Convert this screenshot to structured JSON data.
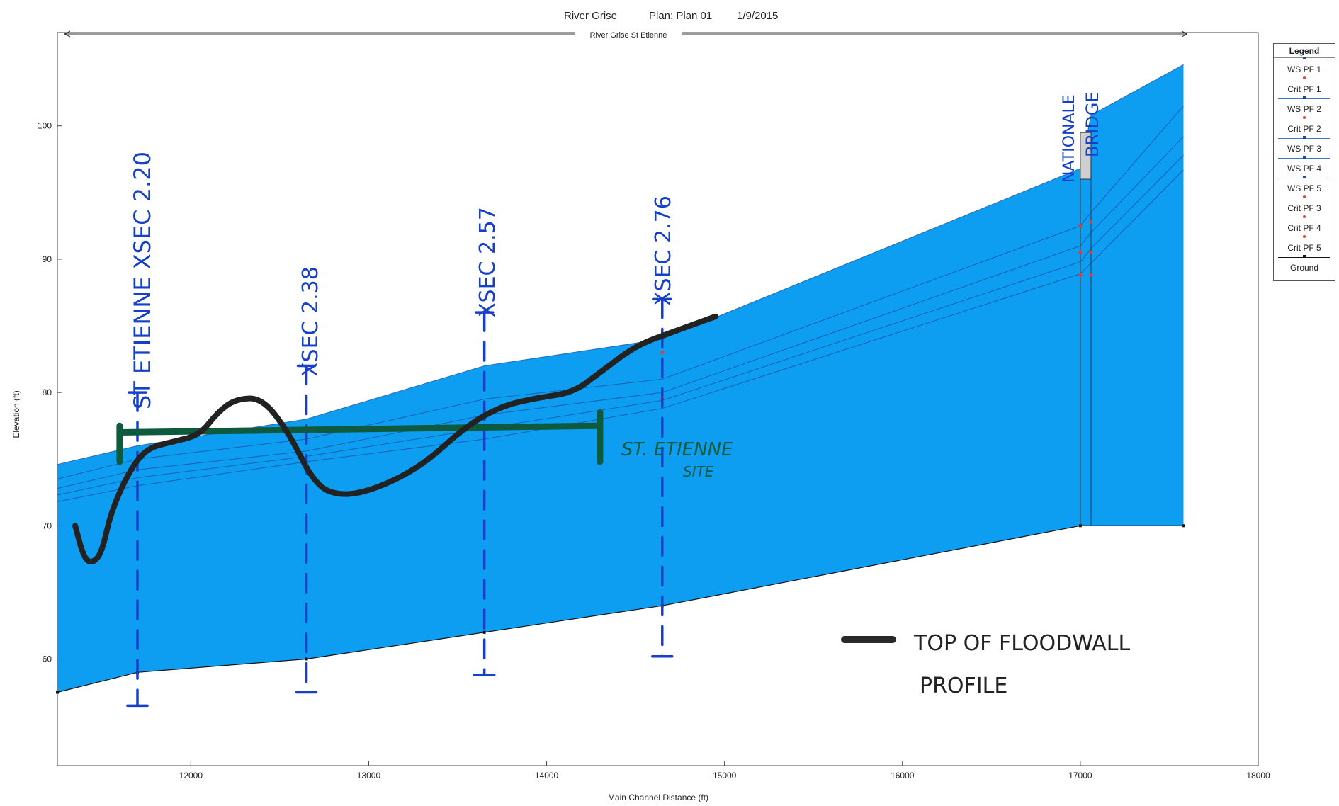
{
  "header": {
    "title_left": "River Grise",
    "title_mid": "Plan: Plan 01",
    "title_date": "1/9/2015",
    "reach_label": "River Grise St Etienne"
  },
  "colors": {
    "water": "#0d9ef2",
    "ground": "#111111",
    "ws_line": "#1a4b9a",
    "crit_marker": "#e23c3c",
    "annotation_blue": "#1740c8",
    "annotation_green": "#0d5a3c",
    "floodwall": "#222222"
  },
  "legend": {
    "title": "Legend",
    "items": [
      {
        "label": "WS PF 1",
        "kind": "ws"
      },
      {
        "label": "Crit PF 1",
        "kind": "crit"
      },
      {
        "label": "WS PF 2",
        "kind": "ws"
      },
      {
        "label": "Crit PF 2",
        "kind": "crit"
      },
      {
        "label": "WS PF 3",
        "kind": "ws"
      },
      {
        "label": "WS PF 4",
        "kind": "ws"
      },
      {
        "label": "WS PF 5",
        "kind": "ws"
      },
      {
        "label": "Crit PF 3",
        "kind": "crit"
      },
      {
        "label": "Crit PF 4",
        "kind": "crit"
      },
      {
        "label": "Crit PF 5",
        "kind": "crit"
      },
      {
        "label": "Ground",
        "kind": "ground"
      }
    ]
  },
  "annotations": {
    "xsec_220": "ST ETIENNE XSEC 2.20",
    "xsec_238": "XSEC 2.38",
    "xsec_257": "XSEC 2.57",
    "xsec_276": "XSEC 2.76",
    "bridge_line1": "NATIONALE",
    "bridge_line2": "BRIDGE",
    "site_line1": "ST. ETIENNE",
    "site_line2": "SITE",
    "key_line1": "TOP OF FLOODWALL",
    "key_line2": "PROFILE"
  },
  "chart_data": {
    "type": "area",
    "title": "River Grise     Plan: Plan 01     1/9/2015",
    "xlabel": "Main Channel Distance (ft)",
    "ylabel": "Elevation (ft)",
    "xlim": [
      11250,
      18000
    ],
    "ylim": [
      52,
      107
    ],
    "x_ticks": [
      12000,
      13000,
      14000,
      15000,
      16000,
      17000,
      18000
    ],
    "y_ticks": [
      60,
      70,
      80,
      90,
      100
    ],
    "legend_position": "right",
    "series": [
      {
        "name": "Ground",
        "points": [
          [
            11250,
            57.5
          ],
          [
            11700,
            59
          ],
          [
            12650,
            60
          ],
          [
            13650,
            62
          ],
          [
            14650,
            64
          ],
          [
            17000,
            70
          ],
          [
            17580,
            70
          ]
        ]
      },
      {
        "name": "WS PF 5",
        "points": [
          [
            11250,
            74.6
          ],
          [
            11700,
            76
          ],
          [
            12650,
            78
          ],
          [
            13650,
            82
          ],
          [
            14650,
            84
          ],
          [
            17000,
            96.8
          ],
          [
            17060,
            100.8
          ],
          [
            17580,
            104.6
          ]
        ]
      },
      {
        "name": "WS PF 4",
        "points": [
          [
            11250,
            73.5
          ],
          [
            11700,
            75
          ],
          [
            12650,
            76.5
          ],
          [
            13650,
            79.5
          ],
          [
            14650,
            81
          ],
          [
            17000,
            92.5
          ],
          [
            17060,
            93.5
          ],
          [
            17580,
            101.5
          ]
        ]
      },
      {
        "name": "WS PF 3",
        "points": [
          [
            11250,
            72.8
          ],
          [
            11700,
            74.2
          ],
          [
            12650,
            75.6
          ],
          [
            13650,
            78.3
          ],
          [
            14650,
            80
          ],
          [
            17000,
            91
          ],
          [
            17060,
            92
          ],
          [
            17580,
            99.2
          ]
        ]
      },
      {
        "name": "WS PF 2",
        "points": [
          [
            11250,
            72.3
          ],
          [
            11700,
            73.6
          ],
          [
            12650,
            75.2
          ],
          [
            13650,
            77.3
          ],
          [
            14650,
            79.4
          ],
          [
            17000,
            89.8
          ],
          [
            17060,
            90.8
          ],
          [
            17580,
            97.8
          ]
        ]
      },
      {
        "name": "WS PF 1",
        "points": [
          [
            11250,
            71.8
          ],
          [
            11700,
            73
          ],
          [
            12650,
            74.8
          ],
          [
            13650,
            76.5
          ],
          [
            14650,
            78.8
          ],
          [
            17000,
            88.9
          ],
          [
            17060,
            89.7
          ],
          [
            17580,
            96.7
          ]
        ]
      }
    ],
    "bridge": {
      "x_start": 17000,
      "x_end": 17060,
      "deck_top": 99.5,
      "deck_bottom": 96
    },
    "floodwall_profile": [
      [
        11350,
        70
      ],
      [
        11400,
        67.5
      ],
      [
        11450,
        67.2
      ],
      [
        11500,
        68
      ],
      [
        11550,
        71
      ],
      [
        11650,
        74
      ],
      [
        11750,
        75.8
      ],
      [
        11900,
        76.3
      ],
      [
        12050,
        76.8
      ],
      [
        12150,
        78.5
      ],
      [
        12250,
        79.5
      ],
      [
        12400,
        79.6
      ],
      [
        12550,
        77
      ],
      [
        12700,
        73
      ],
      [
        12850,
        72.2
      ],
      [
        13050,
        72.8
      ],
      [
        13300,
        74.5
      ],
      [
        13550,
        77.5
      ],
      [
        13750,
        79
      ],
      [
        13950,
        79.6
      ],
      [
        14150,
        80
      ],
      [
        14300,
        81.5
      ],
      [
        14500,
        83.5
      ],
      [
        14700,
        84.5
      ],
      [
        14950,
        85.7
      ]
    ],
    "site_extent": {
      "x_start": 11600,
      "x_end": 14300,
      "elevation": 77,
      "bar_top": 77.5,
      "bar_bottom": 74.8
    },
    "xsec_markers": [
      {
        "label": "ST ETIENNE XSEC 2.20",
        "x": 11700,
        "top": 80,
        "bottom": 56.5
      },
      {
        "label": "XSEC 2.38",
        "x": 12650,
        "top": 82,
        "bottom": 57.5
      },
      {
        "label": "XSEC 2.57",
        "x": 13650,
        "top": 86,
        "bottom": 58.8
      },
      {
        "label": "XSEC 2.76",
        "x": 14650,
        "top": 87,
        "bottom": 60.2
      }
    ],
    "crit_points": [
      [
        17000,
        92.5
      ],
      [
        17060,
        92.8
      ],
      [
        17000,
        90.5
      ],
      [
        17060,
        90.5
      ],
      [
        17000,
        88.8
      ],
      [
        17060,
        88.8
      ],
      [
        14650,
        83
      ],
      [
        14650,
        79.5
      ]
    ]
  }
}
